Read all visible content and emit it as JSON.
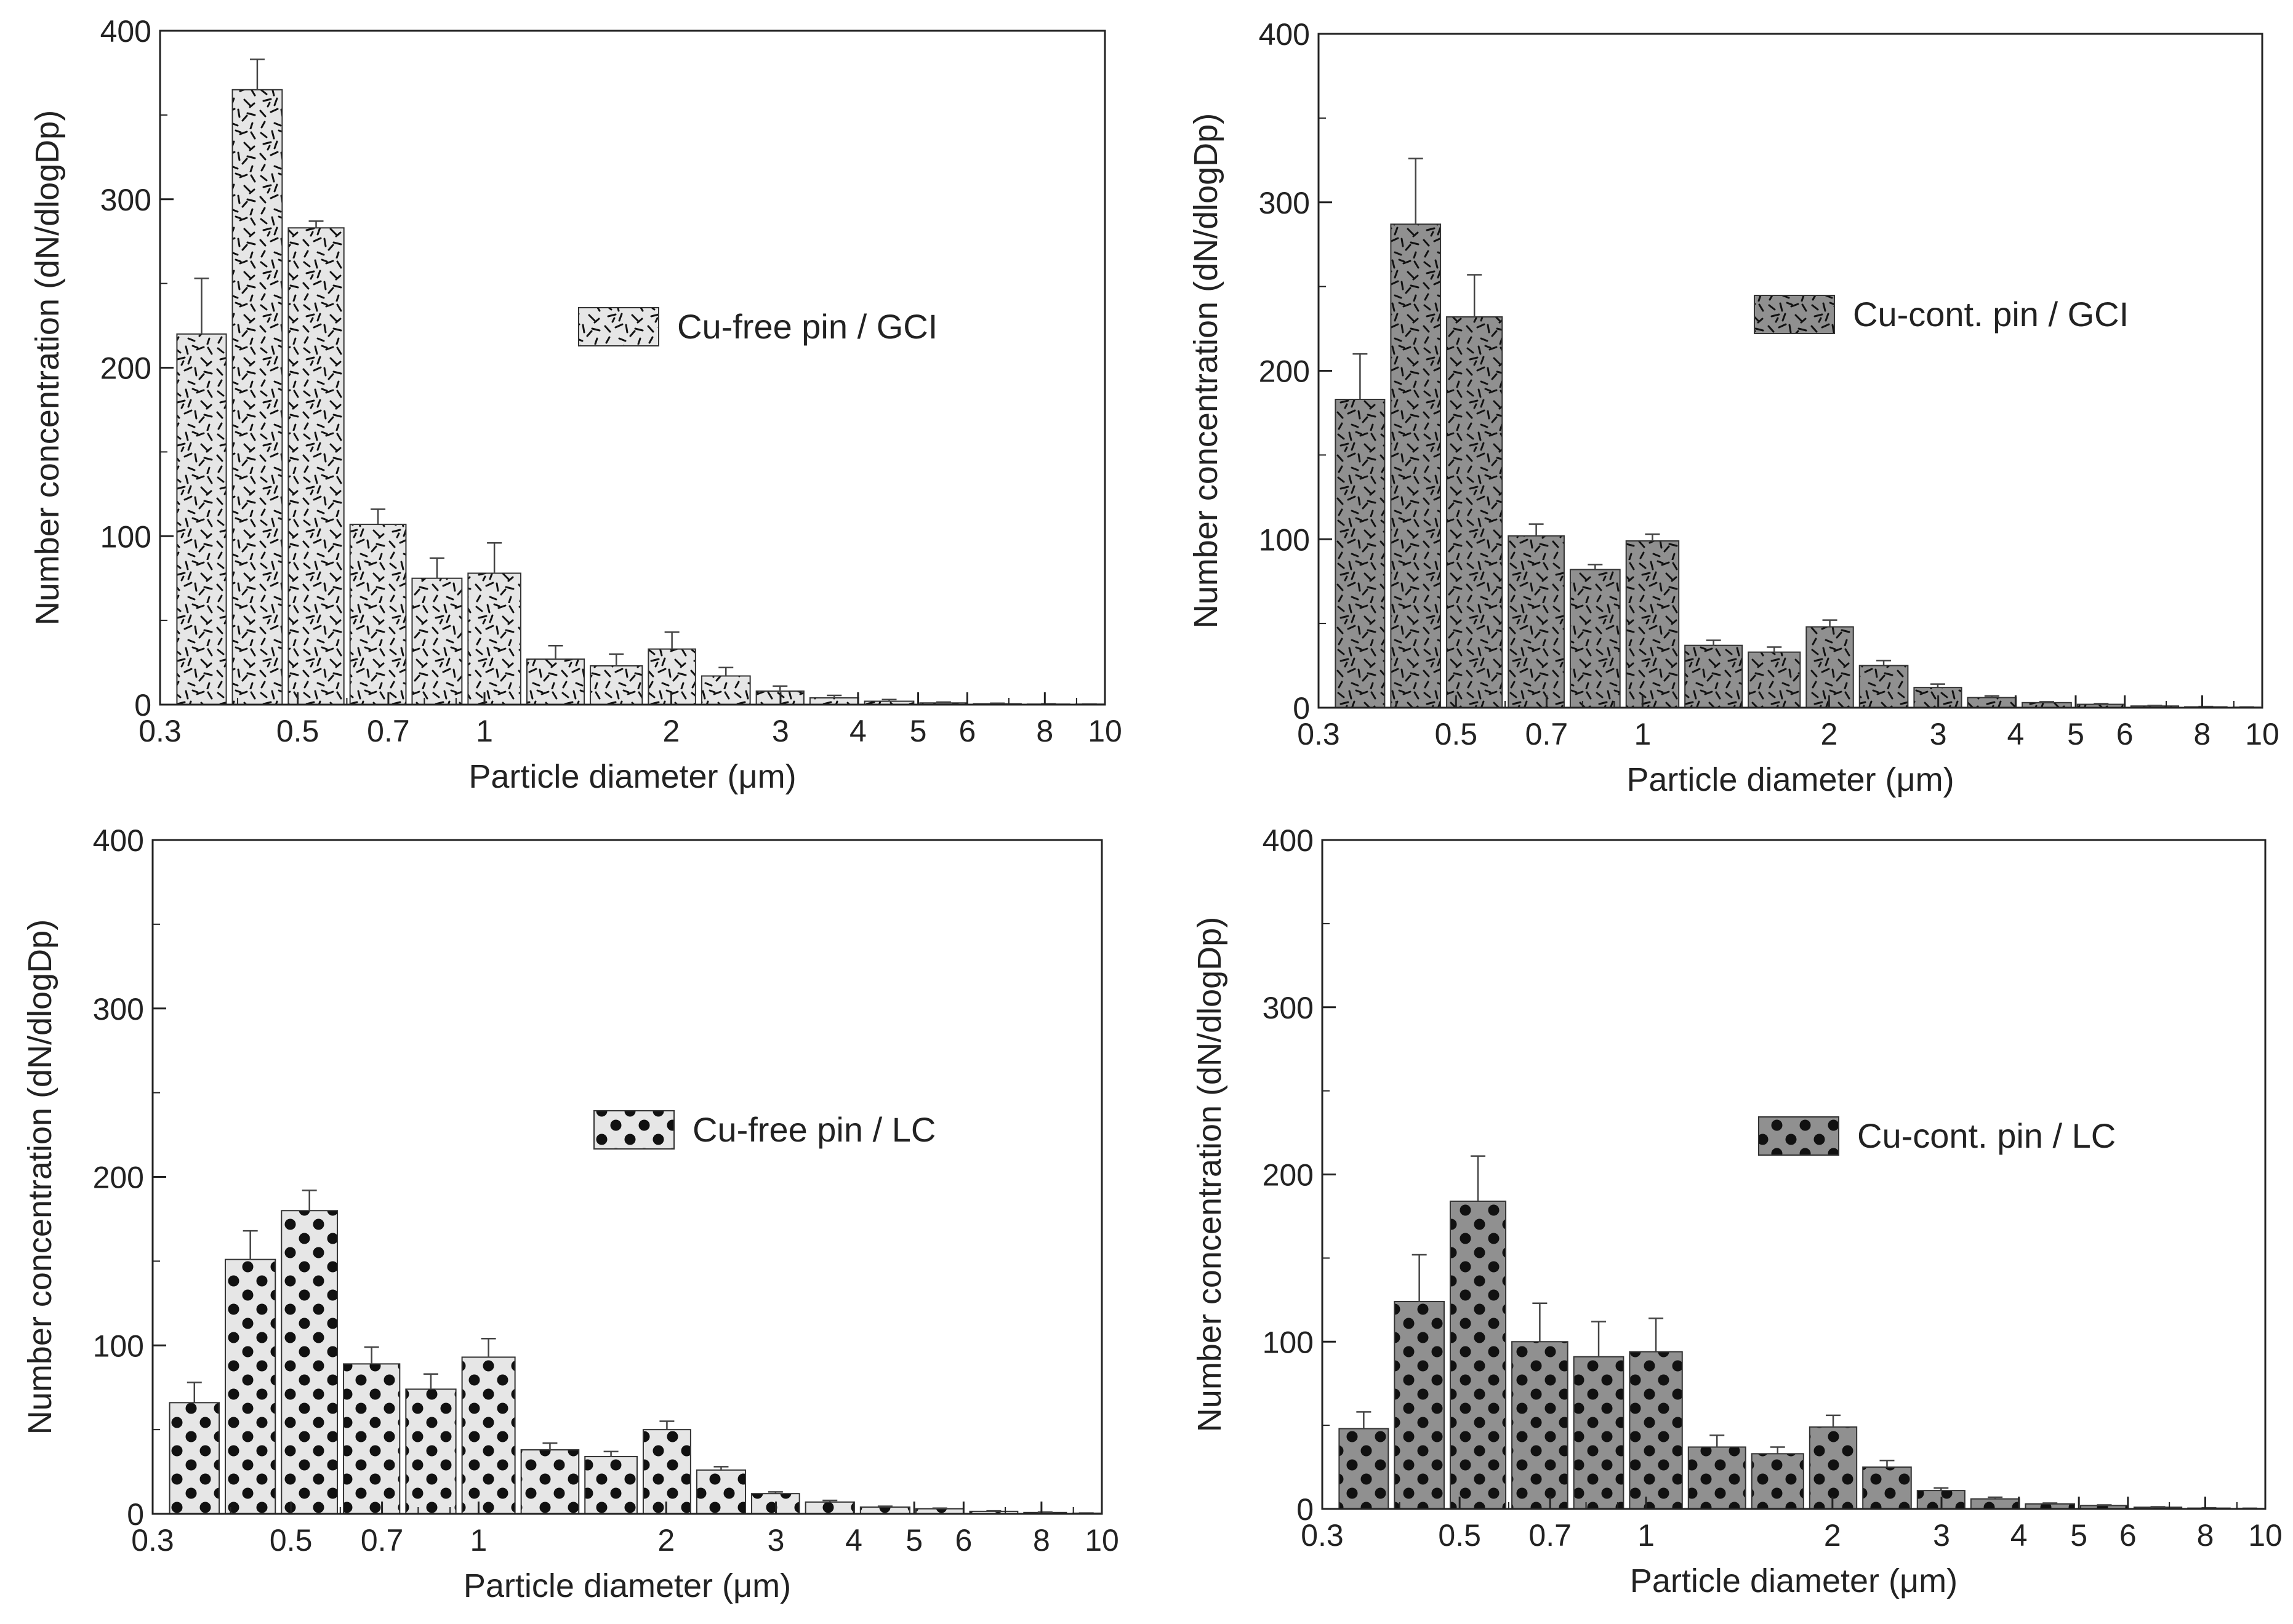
{
  "figure": {
    "x_ticks": [
      0.3,
      0.5,
      0.7,
      1,
      2,
      3,
      4,
      5,
      6,
      8,
      10
    ],
    "x_tick_labels": [
      "0.3",
      "0.5",
      "0.7",
      "1",
      "2",
      "3",
      "4",
      "5",
      "6",
      "8",
      "10"
    ],
    "y_ticks": [
      0,
      100,
      200,
      300,
      400
    ],
    "y_tick_labels": [
      "0",
      "100",
      "200",
      "300",
      "400"
    ]
  },
  "colors": {
    "light_fill": "#e6e6e6",
    "dark_fill": "#909090",
    "marks": "#111111",
    "axis": "#222222"
  },
  "chart_data": [
    {
      "type": "bar",
      "panel": "top-left",
      "title": "",
      "xlabel": "Particle diameter (μm)",
      "ylabel": "Number concentration (dN/dlogDp)",
      "xscale": "log",
      "xlim": [
        0.3,
        10
      ],
      "ylim": [
        0,
        400
      ],
      "legend": {
        "label": "Cu-free pin / GCI",
        "placement": "center-right",
        "fill": "light",
        "pattern": "fibers"
      },
      "x": [
        0.35,
        0.43,
        0.53,
        0.68,
        0.84,
        1.03,
        1.3,
        1.65,
        2.0,
        2.45,
        3.0,
        3.65,
        4.5,
        5.5,
        6.7,
        8.2,
        9.6
      ],
      "values": [
        220,
        365,
        283,
        107,
        75,
        78,
        27,
        23,
        33,
        17,
        8,
        4,
        2,
        1,
        0.5,
        0.3,
        0.2
      ],
      "errors": [
        33,
        18,
        4,
        9,
        12,
        18,
        8,
        7,
        10,
        5,
        3,
        1.5,
        1,
        0.5,
        0.3,
        0.2,
        0.1
      ]
    },
    {
      "type": "bar",
      "panel": "top-right",
      "title": "",
      "xlabel": "Particle diameter (μm)",
      "ylabel": "Number concentration (dN/dlogDp)",
      "xscale": "log",
      "xlim": [
        0.3,
        10
      ],
      "ylim": [
        0,
        400
      ],
      "legend": {
        "label": "Cu-cont. pin / GCI",
        "placement": "center-right",
        "fill": "dark",
        "pattern": "fibers"
      },
      "x": [
        0.35,
        0.43,
        0.53,
        0.68,
        0.84,
        1.03,
        1.3,
        1.65,
        2.0,
        2.45,
        3.0,
        3.65,
        4.5,
        5.5,
        6.7,
        8.2,
        9.6
      ],
      "values": [
        183,
        287,
        232,
        102,
        82,
        99,
        37,
        33,
        48,
        25,
        12,
        6,
        3,
        2,
        1,
        0.5,
        0.3
      ],
      "errors": [
        27,
        39,
        25,
        7,
        3,
        4,
        3,
        3,
        4,
        3,
        2,
        1,
        0.5,
        0.4,
        0.3,
        0.2,
        0.1
      ]
    },
    {
      "type": "bar",
      "panel": "bottom-left",
      "title": "",
      "xlabel": "Particle diameter (μm)",
      "ylabel": "Number concentration (dN/dlogDp)",
      "xscale": "log",
      "xlim": [
        0.3,
        10
      ],
      "ylim": [
        0,
        400
      ],
      "legend": {
        "label": "Cu-free pin / LC",
        "placement": "center-right",
        "fill": "light",
        "pattern": "dots"
      },
      "x": [
        0.35,
        0.43,
        0.53,
        0.68,
        0.84,
        1.03,
        1.3,
        1.65,
        2.0,
        2.45,
        3.0,
        3.65,
        4.5,
        5.5,
        6.7,
        8.2,
        9.6
      ],
      "values": [
        66,
        151,
        180,
        89,
        74,
        93,
        38,
        34,
        50,
        26,
        12,
        7,
        4,
        3,
        1.5,
        0.8,
        0.4
      ],
      "errors": [
        12,
        17,
        12,
        10,
        9,
        11,
        4,
        3,
        5,
        2,
        1,
        1,
        0.5,
        0.4,
        0.3,
        0.2,
        0.1
      ]
    },
    {
      "type": "bar",
      "panel": "bottom-right",
      "title": "",
      "xlabel": "Particle diameter (μm)",
      "ylabel": "Number concentration (dN/dlogDp)",
      "xscale": "log",
      "xlim": [
        0.3,
        10
      ],
      "ylim": [
        0,
        400
      ],
      "legend": {
        "label": "Cu-cont. pin / LC",
        "placement": "center-right",
        "fill": "dark",
        "pattern": "dots"
      },
      "x": [
        0.35,
        0.43,
        0.53,
        0.68,
        0.84,
        1.03,
        1.3,
        1.65,
        2.0,
        2.45,
        3.0,
        3.65,
        4.5,
        5.5,
        6.7,
        8.2,
        9.6
      ],
      "values": [
        48,
        124,
        184,
        100,
        91,
        94,
        37,
        33,
        49,
        25,
        11,
        6,
        3,
        2,
        1,
        0.5,
        0.3
      ],
      "errors": [
        10,
        28,
        27,
        23,
        21,
        20,
        7,
        4,
        7,
        4,
        1.5,
        1,
        0.5,
        0.4,
        0.3,
        0.2,
        0.1
      ]
    }
  ]
}
